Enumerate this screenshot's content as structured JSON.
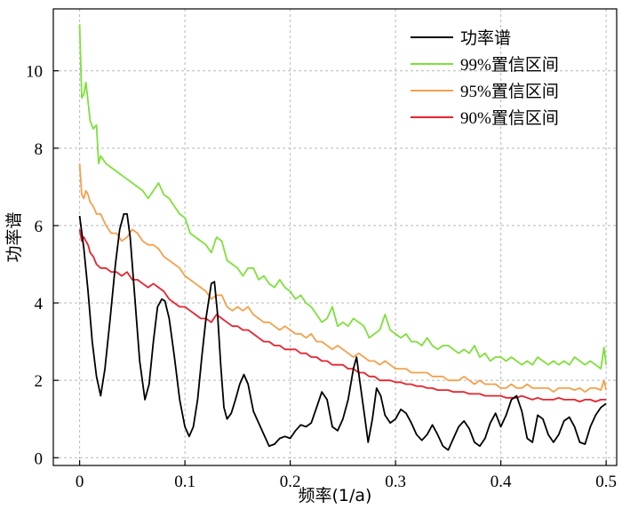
{
  "chart_data": {
    "type": "line",
    "title": "",
    "xlabel": "频率(1/a)",
    "ylabel": "功率谱",
    "xlim": [
      -0.025,
      0.51
    ],
    "ylim": [
      -0.2,
      11.6
    ],
    "xticks": [
      0,
      0.1,
      0.2,
      0.3,
      0.4,
      0.5
    ],
    "xtick_labels": [
      "0",
      "0.1",
      "0.2",
      "0.3",
      "0.4",
      "0.5"
    ],
    "yticks": [
      0,
      2,
      4,
      6,
      8,
      10
    ],
    "ytick_labels": [
      "0",
      "2",
      "4",
      "6",
      "8",
      "10"
    ],
    "grid": true,
    "grid_style": "dashed",
    "legend_position": "top-right",
    "series": [
      {
        "name": "功率谱",
        "color": "#000000",
        "x": [
          0,
          0.004,
          0.008,
          0.012,
          0.016,
          0.02,
          0.024,
          0.029,
          0.034,
          0.038,
          0.042,
          0.045,
          0.048,
          0.052,
          0.057,
          0.062,
          0.066,
          0.07,
          0.074,
          0.078,
          0.081,
          0.085,
          0.09,
          0.095,
          0.1,
          0.104,
          0.108,
          0.112,
          0.116,
          0.12,
          0.125,
          0.128,
          0.131,
          0.134,
          0.137,
          0.14,
          0.144,
          0.148,
          0.152,
          0.156,
          0.16,
          0.165,
          0.17,
          0.175,
          0.18,
          0.185,
          0.19,
          0.195,
          0.2,
          0.205,
          0.21,
          0.215,
          0.22,
          0.225,
          0.23,
          0.235,
          0.24,
          0.245,
          0.25,
          0.255,
          0.26,
          0.263,
          0.266,
          0.27,
          0.274,
          0.278,
          0.282,
          0.286,
          0.29,
          0.295,
          0.3,
          0.305,
          0.31,
          0.315,
          0.32,
          0.325,
          0.33,
          0.335,
          0.34,
          0.345,
          0.35,
          0.355,
          0.36,
          0.365,
          0.37,
          0.375,
          0.38,
          0.385,
          0.39,
          0.395,
          0.4,
          0.405,
          0.41,
          0.415,
          0.42,
          0.425,
          0.43,
          0.435,
          0.44,
          0.445,
          0.45,
          0.455,
          0.46,
          0.465,
          0.47,
          0.475,
          0.48,
          0.485,
          0.49,
          0.495,
          0.5
        ],
        "values": [
          6.25,
          5.4,
          4.3,
          3.0,
          2.1,
          1.6,
          2.3,
          3.6,
          5.0,
          5.9,
          6.3,
          6.3,
          5.7,
          4.3,
          2.5,
          1.5,
          1.9,
          3.0,
          3.9,
          4.1,
          4.05,
          3.6,
          2.6,
          1.5,
          0.8,
          0.55,
          0.8,
          1.5,
          2.6,
          3.6,
          4.5,
          4.55,
          3.7,
          2.4,
          1.3,
          1.0,
          1.15,
          1.5,
          1.9,
          2.15,
          1.9,
          1.2,
          0.9,
          0.6,
          0.3,
          0.35,
          0.5,
          0.55,
          0.5,
          0.7,
          0.85,
          0.8,
          0.9,
          1.3,
          1.7,
          1.5,
          0.8,
          0.7,
          1.0,
          1.5,
          2.3,
          2.6,
          2.0,
          1.2,
          0.4,
          1.0,
          1.8,
          1.6,
          1.1,
          0.9,
          1.0,
          1.25,
          1.15,
          0.9,
          0.6,
          0.45,
          0.6,
          0.85,
          0.6,
          0.3,
          0.2,
          0.5,
          0.8,
          0.95,
          0.75,
          0.4,
          0.3,
          0.5,
          0.9,
          1.15,
          0.8,
          1.1,
          1.5,
          1.6,
          1.2,
          0.5,
          0.4,
          1.1,
          1.0,
          0.6,
          0.4,
          0.6,
          0.95,
          1.05,
          0.8,
          0.4,
          0.35,
          0.8,
          1.1,
          1.3,
          1.4
        ]
      },
      {
        "name": "99%置信区间",
        "color": "#7ee03c",
        "x": [
          0,
          0.002,
          0.004,
          0.006,
          0.008,
          0.01,
          0.013,
          0.016,
          0.018,
          0.02,
          0.025,
          0.03,
          0.035,
          0.04,
          0.045,
          0.05,
          0.055,
          0.06,
          0.065,
          0.07,
          0.075,
          0.08,
          0.085,
          0.09,
          0.095,
          0.1,
          0.105,
          0.11,
          0.115,
          0.12,
          0.125,
          0.13,
          0.135,
          0.14,
          0.145,
          0.15,
          0.155,
          0.16,
          0.165,
          0.17,
          0.175,
          0.18,
          0.185,
          0.19,
          0.195,
          0.2,
          0.205,
          0.21,
          0.215,
          0.22,
          0.225,
          0.23,
          0.235,
          0.24,
          0.245,
          0.25,
          0.255,
          0.26,
          0.265,
          0.27,
          0.275,
          0.28,
          0.285,
          0.29,
          0.295,
          0.3,
          0.305,
          0.31,
          0.315,
          0.32,
          0.325,
          0.33,
          0.335,
          0.34,
          0.345,
          0.35,
          0.355,
          0.36,
          0.365,
          0.37,
          0.375,
          0.38,
          0.385,
          0.39,
          0.395,
          0.4,
          0.405,
          0.41,
          0.415,
          0.42,
          0.425,
          0.43,
          0.435,
          0.44,
          0.445,
          0.45,
          0.455,
          0.46,
          0.465,
          0.47,
          0.475,
          0.48,
          0.485,
          0.49,
          0.495,
          0.498,
          0.5
        ],
        "values": [
          11.2,
          9.3,
          9.4,
          9.7,
          9.2,
          8.7,
          8.5,
          8.6,
          7.6,
          7.8,
          7.6,
          7.5,
          7.4,
          7.3,
          7.2,
          7.1,
          7.0,
          6.9,
          6.7,
          6.9,
          7.1,
          6.8,
          6.7,
          6.5,
          6.3,
          6.2,
          5.8,
          5.7,
          5.6,
          5.5,
          5.3,
          5.7,
          5.6,
          5.1,
          5.0,
          4.9,
          4.7,
          4.9,
          4.9,
          4.6,
          4.7,
          4.5,
          4.4,
          4.6,
          4.4,
          4.3,
          4.1,
          4.2,
          4.0,
          3.9,
          3.7,
          3.5,
          3.6,
          3.9,
          3.4,
          3.5,
          3.4,
          3.6,
          3.5,
          3.4,
          3.1,
          3.2,
          3.3,
          3.7,
          3.3,
          3.2,
          3.1,
          3.2,
          3.0,
          3.0,
          2.9,
          3.1,
          2.9,
          2.8,
          2.9,
          2.9,
          2.8,
          2.7,
          2.8,
          2.7,
          2.9,
          2.6,
          2.7,
          2.5,
          2.6,
          2.6,
          2.5,
          2.6,
          2.5,
          2.4,
          2.5,
          2.4,
          2.6,
          2.5,
          2.4,
          2.5,
          2.4,
          2.5,
          2.4,
          2.6,
          2.5,
          2.4,
          2.5,
          2.4,
          2.3,
          2.85,
          2.4
        ]
      },
      {
        "name": "95%置信区间",
        "color": "#f5a04a",
        "x": [
          0,
          0.002,
          0.004,
          0.006,
          0.008,
          0.01,
          0.013,
          0.016,
          0.02,
          0.025,
          0.03,
          0.035,
          0.04,
          0.045,
          0.05,
          0.055,
          0.06,
          0.065,
          0.07,
          0.075,
          0.08,
          0.085,
          0.09,
          0.095,
          0.1,
          0.105,
          0.11,
          0.115,
          0.12,
          0.125,
          0.13,
          0.135,
          0.14,
          0.145,
          0.15,
          0.155,
          0.16,
          0.165,
          0.17,
          0.175,
          0.18,
          0.185,
          0.19,
          0.195,
          0.2,
          0.205,
          0.21,
          0.215,
          0.22,
          0.225,
          0.23,
          0.235,
          0.24,
          0.245,
          0.25,
          0.255,
          0.26,
          0.265,
          0.27,
          0.275,
          0.28,
          0.285,
          0.29,
          0.295,
          0.3,
          0.305,
          0.31,
          0.315,
          0.32,
          0.325,
          0.33,
          0.335,
          0.34,
          0.345,
          0.35,
          0.355,
          0.36,
          0.365,
          0.37,
          0.375,
          0.38,
          0.385,
          0.39,
          0.395,
          0.4,
          0.405,
          0.41,
          0.415,
          0.42,
          0.425,
          0.43,
          0.435,
          0.44,
          0.445,
          0.45,
          0.455,
          0.46,
          0.465,
          0.47,
          0.475,
          0.48,
          0.485,
          0.49,
          0.495,
          0.498,
          0.5
        ],
        "values": [
          7.6,
          6.8,
          6.7,
          6.9,
          6.8,
          6.6,
          6.5,
          6.3,
          6.3,
          6.0,
          5.8,
          5.8,
          5.6,
          5.7,
          5.9,
          5.8,
          5.6,
          5.5,
          5.5,
          5.4,
          5.2,
          5.1,
          5.0,
          4.9,
          4.7,
          4.6,
          4.5,
          4.4,
          4.3,
          4.1,
          4.2,
          4.2,
          3.9,
          3.8,
          3.9,
          3.8,
          3.9,
          3.7,
          3.6,
          3.5,
          3.5,
          3.4,
          3.3,
          3.4,
          3.3,
          3.2,
          3.2,
          3.1,
          3.2,
          3.0,
          3.0,
          2.9,
          2.8,
          2.9,
          2.8,
          2.7,
          2.6,
          2.7,
          2.6,
          2.5,
          2.5,
          2.4,
          2.5,
          2.4,
          2.3,
          2.3,
          2.3,
          2.2,
          2.2,
          2.2,
          2.2,
          2.1,
          2.1,
          2.1,
          2.0,
          2.0,
          2.0,
          2.1,
          2.0,
          1.9,
          2.0,
          1.9,
          1.9,
          1.9,
          1.8,
          1.8,
          1.9,
          1.8,
          1.8,
          1.9,
          1.8,
          1.8,
          1.8,
          1.8,
          1.7,
          1.8,
          1.8,
          1.8,
          1.75,
          1.8,
          1.7,
          1.8,
          1.8,
          1.75,
          2.0,
          1.75
        ]
      },
      {
        "name": "90%置信区间",
        "color": "#e8232d",
        "x": [
          0,
          0.002,
          0.004,
          0.006,
          0.008,
          0.01,
          0.013,
          0.016,
          0.02,
          0.025,
          0.03,
          0.035,
          0.04,
          0.045,
          0.05,
          0.055,
          0.06,
          0.065,
          0.07,
          0.075,
          0.08,
          0.085,
          0.09,
          0.095,
          0.1,
          0.105,
          0.11,
          0.115,
          0.12,
          0.125,
          0.13,
          0.135,
          0.14,
          0.145,
          0.15,
          0.155,
          0.16,
          0.165,
          0.17,
          0.175,
          0.18,
          0.185,
          0.19,
          0.195,
          0.2,
          0.205,
          0.21,
          0.215,
          0.22,
          0.225,
          0.23,
          0.235,
          0.24,
          0.245,
          0.25,
          0.255,
          0.26,
          0.265,
          0.27,
          0.275,
          0.28,
          0.285,
          0.29,
          0.295,
          0.3,
          0.305,
          0.31,
          0.315,
          0.32,
          0.325,
          0.33,
          0.335,
          0.34,
          0.345,
          0.35,
          0.355,
          0.36,
          0.365,
          0.37,
          0.375,
          0.38,
          0.385,
          0.39,
          0.395,
          0.4,
          0.405,
          0.41,
          0.415,
          0.42,
          0.425,
          0.43,
          0.435,
          0.44,
          0.445,
          0.45,
          0.455,
          0.46,
          0.465,
          0.47,
          0.475,
          0.48,
          0.485,
          0.49,
          0.495,
          0.5
        ],
        "values": [
          5.9,
          5.6,
          5.7,
          5.6,
          5.5,
          5.3,
          5.2,
          5.0,
          4.9,
          4.9,
          4.8,
          4.8,
          4.7,
          4.8,
          4.6,
          4.6,
          4.5,
          4.4,
          4.5,
          4.4,
          4.3,
          4.1,
          4.0,
          3.9,
          3.9,
          3.8,
          3.7,
          3.6,
          3.6,
          3.5,
          3.7,
          3.6,
          3.5,
          3.4,
          3.4,
          3.3,
          3.3,
          3.2,
          3.1,
          3.0,
          3.0,
          2.9,
          2.9,
          2.8,
          2.8,
          2.8,
          2.7,
          2.7,
          2.6,
          2.6,
          2.5,
          2.5,
          2.4,
          2.4,
          2.4,
          2.3,
          2.3,
          2.2,
          2.2,
          2.1,
          2.1,
          2.0,
          2.0,
          2.0,
          1.95,
          1.95,
          1.9,
          1.9,
          1.85,
          1.85,
          1.8,
          1.8,
          1.75,
          1.75,
          1.75,
          1.7,
          1.7,
          1.7,
          1.65,
          1.65,
          1.65,
          1.6,
          1.6,
          1.6,
          1.6,
          1.55,
          1.55,
          1.55,
          1.6,
          1.55,
          1.5,
          1.55,
          1.5,
          1.5,
          1.5,
          1.55,
          1.5,
          1.5,
          1.5,
          1.45,
          1.5,
          1.5,
          1.45,
          1.5,
          1.5
        ]
      }
    ]
  }
}
